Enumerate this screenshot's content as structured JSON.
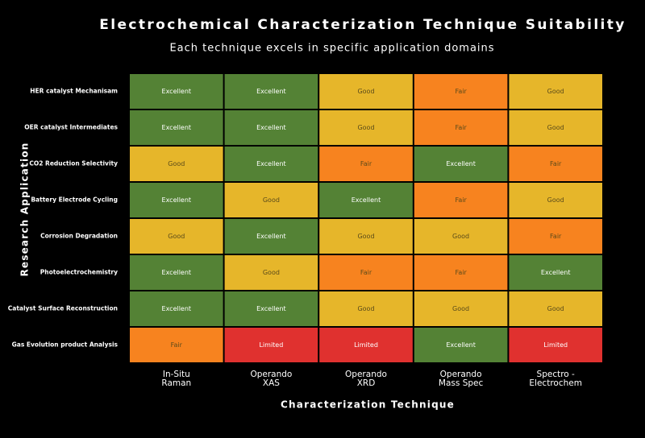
{
  "chart_data": {
    "type": "heatmap",
    "title": "Electrochemical Characterization Technique Suitability",
    "subtitle": "Each technique excels in specific application domains",
    "x_label": "Characterization Technique",
    "y_label": "Research Application",
    "columns": [
      [
        "In-Situ",
        "Raman"
      ],
      [
        "Operando",
        "XAS"
      ],
      [
        "Operando",
        "XRD"
      ],
      [
        "Operando",
        "Mass Spec"
      ],
      [
        "Spectro -",
        "Electrochem"
      ]
    ],
    "rows": [
      "HER catalyst Mechanisam",
      "OER catalyst Intermediates",
      "CO2 Reduction Selectivity",
      "Battery Electrode Cycling",
      "Corrosion Degradation",
      "Photoelectrochemistry",
      "Catalyst Surface Reconstruction",
      "Gas Evolution product Analysis"
    ],
    "values": [
      [
        "Excellent",
        "Excellent",
        "Good",
        "Fair",
        "Good"
      ],
      [
        "Excellent",
        "Excellent",
        "Good",
        "Fair",
        "Good"
      ],
      [
        "Good",
        "Excellent",
        "Fair",
        "Excellent",
        "Fair"
      ],
      [
        "Excellent",
        "Good",
        "Excellent",
        "Fair",
        "Good"
      ],
      [
        "Good",
        "Excellent",
        "Good",
        "Good",
        "Fair"
      ],
      [
        "Excellent",
        "Good",
        "Fair",
        "Fair",
        "Excellent"
      ],
      [
        "Excellent",
        "Excellent",
        "Good",
        "Good",
        "Good"
      ],
      [
        "Fair",
        "Limited",
        "Limited",
        "Excellent",
        "Limited"
      ]
    ],
    "colors": {
      "Excellent": "#548235",
      "Good": "#e6b62a",
      "Fair": "#f7831f",
      "Limited": "#e0312f"
    }
  }
}
